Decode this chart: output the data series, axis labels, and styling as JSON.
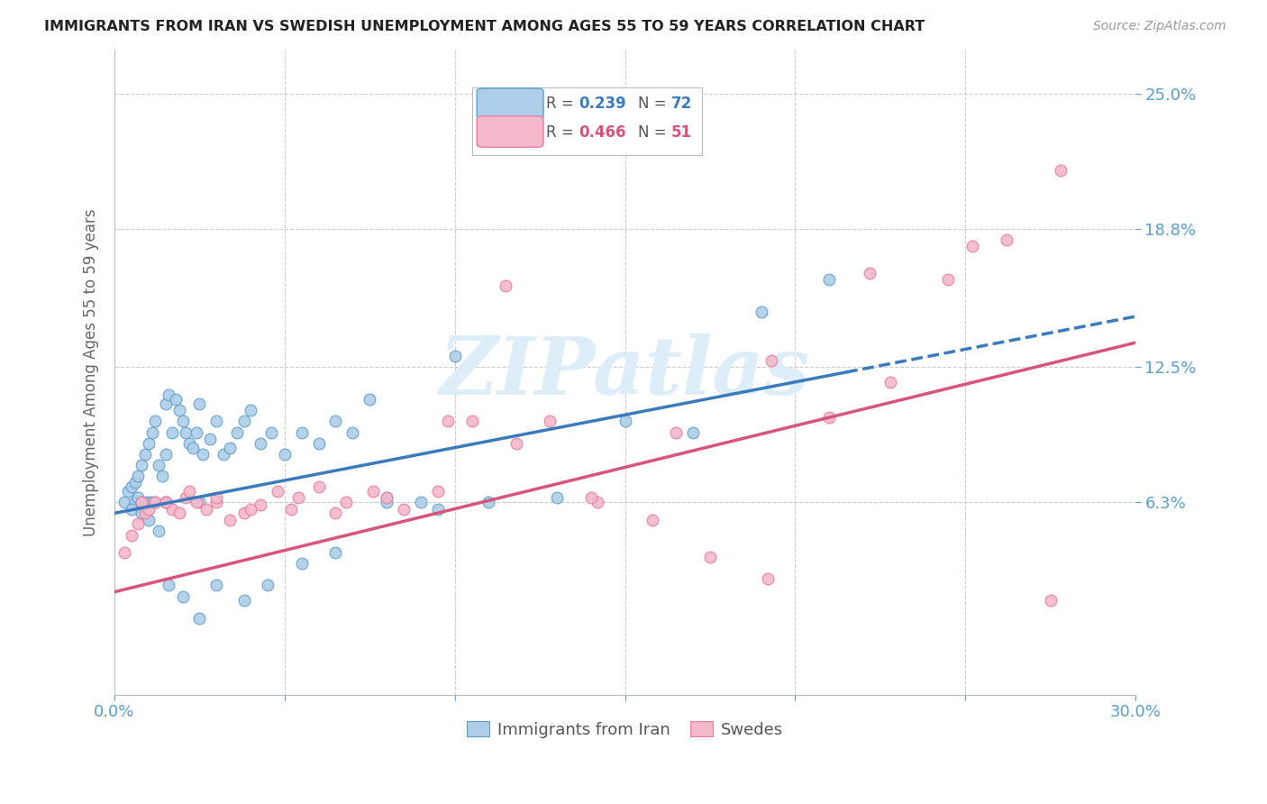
{
  "title": "IMMIGRANTS FROM IRAN VS SWEDISH UNEMPLOYMENT AMONG AGES 55 TO 59 YEARS CORRELATION CHART",
  "source": "Source: ZipAtlas.com",
  "ylabel": "Unemployment Among Ages 55 to 59 years",
  "xlim": [
    0.0,
    0.3
  ],
  "ylim": [
    -0.025,
    0.27
  ],
  "ytick_labels": [
    "6.3%",
    "12.5%",
    "18.8%",
    "25.0%"
  ],
  "ytick_values": [
    0.063,
    0.125,
    0.188,
    0.25
  ],
  "legend_label1": "Immigrants from Iran",
  "legend_label2": "Swedes",
  "R1": "0.239",
  "N1": "72",
  "R2": "0.466",
  "N2": "51",
  "color_blue_fill": "#aecde8",
  "color_blue_edge": "#5b9ec9",
  "color_blue_line": "#3a7bbf",
  "color_pink_fill": "#f4b8cb",
  "color_pink_edge": "#e8799a",
  "color_pink_line": "#d9547a",
  "color_grid": "#cccccc",
  "color_title": "#222222",
  "color_source": "#999999",
  "color_ylabel": "#666666",
  "color_tick": "#5b9ec9",
  "color_watermark": "#ddeef8",
  "watermark": "ZIPatlas",
  "blue_x": [
    0.003,
    0.004,
    0.005,
    0.006,
    0.006,
    0.007,
    0.007,
    0.008,
    0.008,
    0.009,
    0.009,
    0.01,
    0.01,
    0.011,
    0.011,
    0.012,
    0.012,
    0.013,
    0.014,
    0.015,
    0.015,
    0.016,
    0.017,
    0.018,
    0.019,
    0.02,
    0.021,
    0.022,
    0.023,
    0.024,
    0.025,
    0.026,
    0.028,
    0.03,
    0.032,
    0.034,
    0.036,
    0.038,
    0.04,
    0.043,
    0.046,
    0.05,
    0.055,
    0.06,
    0.065,
    0.07,
    0.075,
    0.08,
    0.09,
    0.1,
    0.005,
    0.008,
    0.01,
    0.013,
    0.016,
    0.02,
    0.025,
    0.03,
    0.038,
    0.045,
    0.055,
    0.065,
    0.08,
    0.095,
    0.11,
    0.13,
    0.15,
    0.17,
    0.19,
    0.21,
    0.015,
    0.025
  ],
  "blue_y": [
    0.063,
    0.068,
    0.07,
    0.063,
    0.072,
    0.065,
    0.075,
    0.063,
    0.08,
    0.063,
    0.085,
    0.063,
    0.09,
    0.063,
    0.095,
    0.063,
    0.1,
    0.08,
    0.075,
    0.085,
    0.108,
    0.112,
    0.095,
    0.11,
    0.105,
    0.1,
    0.095,
    0.09,
    0.088,
    0.095,
    0.108,
    0.085,
    0.092,
    0.1,
    0.085,
    0.088,
    0.095,
    0.1,
    0.105,
    0.09,
    0.095,
    0.085,
    0.095,
    0.09,
    0.1,
    0.095,
    0.11,
    0.065,
    0.063,
    0.13,
    0.06,
    0.058,
    0.055,
    0.05,
    0.025,
    0.02,
    0.01,
    0.025,
    0.018,
    0.025,
    0.035,
    0.04,
    0.063,
    0.06,
    0.063,
    0.065,
    0.1,
    0.095,
    0.15,
    0.165,
    0.063,
    0.063
  ],
  "pink_x": [
    0.003,
    0.005,
    0.007,
    0.009,
    0.01,
    0.012,
    0.015,
    0.017,
    0.019,
    0.021,
    0.024,
    0.027,
    0.03,
    0.034,
    0.038,
    0.043,
    0.048,
    0.054,
    0.06,
    0.068,
    0.076,
    0.085,
    0.095,
    0.105,
    0.115,
    0.128,
    0.142,
    0.158,
    0.175,
    0.192,
    0.21,
    0.228,
    0.245,
    0.262,
    0.278,
    0.008,
    0.015,
    0.022,
    0.03,
    0.04,
    0.052,
    0.065,
    0.08,
    0.098,
    0.118,
    0.14,
    0.165,
    0.193,
    0.222,
    0.252,
    0.275
  ],
  "pink_y": [
    0.04,
    0.048,
    0.053,
    0.058,
    0.06,
    0.063,
    0.063,
    0.06,
    0.058,
    0.065,
    0.063,
    0.06,
    0.063,
    0.055,
    0.058,
    0.062,
    0.068,
    0.065,
    0.07,
    0.063,
    0.068,
    0.06,
    0.068,
    0.1,
    0.162,
    0.1,
    0.063,
    0.055,
    0.038,
    0.028,
    0.102,
    0.118,
    0.165,
    0.183,
    0.215,
    0.063,
    0.063,
    0.068,
    0.065,
    0.06,
    0.06,
    0.058,
    0.065,
    0.1,
    0.09,
    0.065,
    0.095,
    0.128,
    0.168,
    0.18,
    0.018
  ],
  "blue_line_x0": 0.0,
  "blue_line_x1": 0.215,
  "blue_line_x1_dash": 0.3,
  "blue_intercept": 0.058,
  "blue_slope": 0.3,
  "pink_line_x0": 0.0,
  "pink_line_x1": 0.3,
  "pink_intercept": 0.022,
  "pink_slope": 0.38
}
